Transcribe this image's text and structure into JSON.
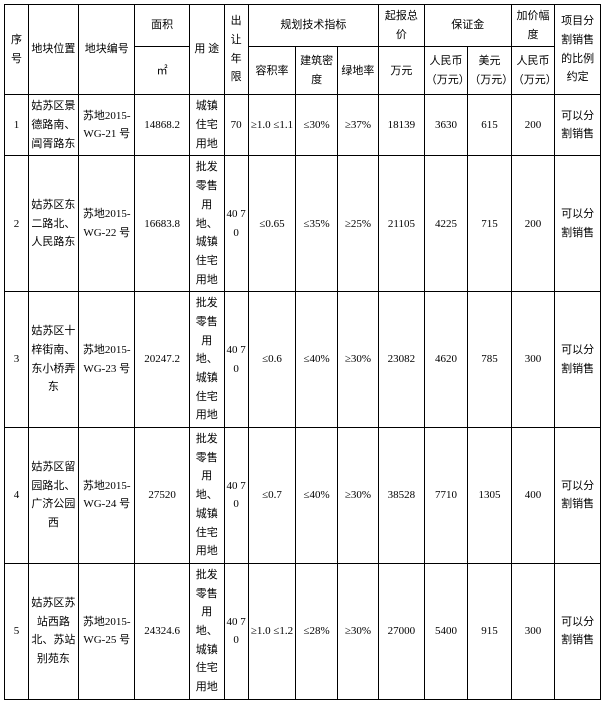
{
  "table": {
    "header": {
      "seq": "序号",
      "location": "地块位置",
      "code": "地块编号",
      "area_group": "面积",
      "area_sub": "㎡",
      "use": "用 途",
      "term": "出让年限",
      "tech_group": "规划技术指标",
      "far": "容积率",
      "build_density": "建筑密度",
      "green_rate": "绿地率",
      "start_price_group": "起报总价",
      "start_price_sub": "万元",
      "deposit_group": "保证金",
      "deposit_rmb": "人民币（万元）",
      "deposit_usd": "美元（万元）",
      "inc_group": "加价幅度",
      "inc_sub": "人民币（万元）",
      "split": "项目分割销售的比例约定"
    },
    "rows": [
      {
        "seq": "1",
        "location": "姑苏区景德路南、阊胥路东",
        "code": "苏地2015-WG-21 号",
        "area": "14868.2",
        "use": "城镇住宅用地",
        "term": "70",
        "far": "≥1.0 ≤1.1",
        "build_density": "≤30%",
        "green_rate": "≥37%",
        "start_price": "18139",
        "deposit_rmb": "3630",
        "deposit_usd": "615",
        "inc": "200",
        "split": "可以分割销售"
      },
      {
        "seq": "2",
        "location": "姑苏区东二路北、人民路东",
        "code": "苏地2015-WG-22 号",
        "area": "16683.8",
        "use": "批发零售用地、城镇住宅用地",
        "term": "40 70",
        "far": "≤0.65",
        "build_density": "≤35%",
        "green_rate": "≥25%",
        "start_price": "21105",
        "deposit_rmb": "4225",
        "deposit_usd": "715",
        "inc": "200",
        "split": "可以分割销售"
      },
      {
        "seq": "3",
        "location": "姑苏区十梓街南、东小桥弄东",
        "code": "苏地2015-WG-23 号",
        "area": "20247.2",
        "use": "批发零售用地、城镇住宅用地",
        "term": "40 70",
        "far": "≤0.6",
        "build_density": "≤40%",
        "green_rate": "≥30%",
        "start_price": "23082",
        "deposit_rmb": "4620",
        "deposit_usd": "785",
        "inc": "300",
        "split": "可以分割销售"
      },
      {
        "seq": "4",
        "location": "姑苏区留园路北、广济公园西",
        "code": "苏地2015-WG-24 号",
        "area": "27520",
        "use": "批发零售用地、城镇住宅用地",
        "term": "40 70",
        "far": "≤0.7",
        "build_density": "≤40%",
        "green_rate": "≥30%",
        "start_price": "38528",
        "deposit_rmb": "7710",
        "deposit_usd": "1305",
        "inc": "400",
        "split": "可以分割销售"
      },
      {
        "seq": "5",
        "location": "姑苏区苏站西路北、苏站别苑东",
        "code": "苏地2015-WG-25 号",
        "area": "24324.6",
        "use": "批发零售用地、城镇住宅用地",
        "term": "40 70",
        "far": "≥1.0 ≤1.2",
        "build_density": "≤28%",
        "green_rate": "≥30%",
        "start_price": "27000",
        "deposit_rmb": "5400",
        "deposit_usd": "915",
        "inc": "300",
        "split": "可以分割销售"
      }
    ]
  }
}
